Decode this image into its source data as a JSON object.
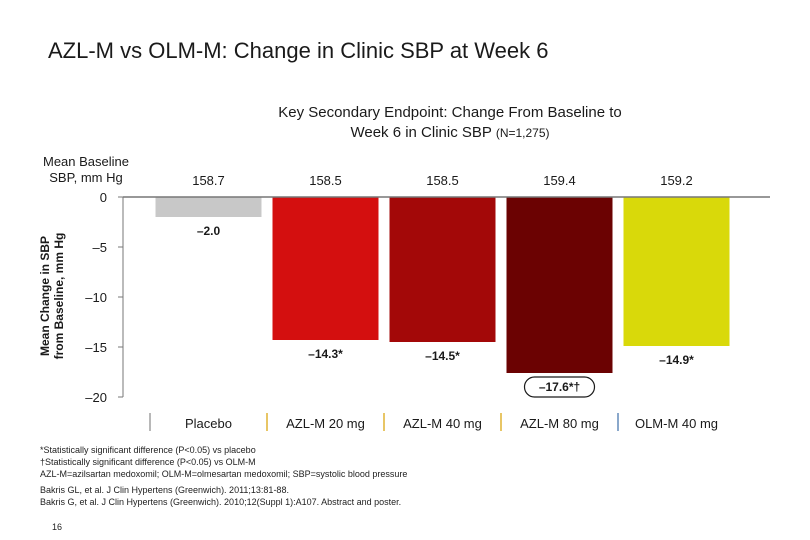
{
  "slide": {
    "title": "AZL-M vs OLM-M: Change in Clinic SBP at Week 6",
    "page_number": "16"
  },
  "chart_data": {
    "type": "bar",
    "title_line1": "Key Secondary Endpoint: Change From Baseline to",
    "title_line2": "Week 6 in Clinic SBP",
    "title_n": "(N=1,275)",
    "baseline_label_line1": "Mean Baseline",
    "baseline_label_line2": "SBP, mm Hg",
    "ylabel_line1": "Mean Change in SBP",
    "ylabel_line2": "from Baseline, mm Hg",
    "ylim": [
      -20,
      0
    ],
    "yticks": [
      0,
      -5,
      -10,
      -15,
      -20
    ],
    "ytick_labels": [
      "0",
      "–5",
      "–10",
      "–15",
      "–20"
    ],
    "categories": [
      "Placebo",
      "AZL-M 20 mg",
      "AZL-M 40 mg",
      "AZL-M 80 mg",
      "OLM-M 40 mg"
    ],
    "values": [
      -2.0,
      -14.3,
      -14.5,
      -17.6,
      -14.9
    ],
    "value_labels": [
      "–2.0",
      "–14.3*",
      "–14.5*",
      "–17.6*†",
      "–14.9*"
    ],
    "highlighted_index": 3,
    "baselines": [
      "158.7",
      "158.5",
      "158.5",
      "159.4",
      "159.2"
    ],
    "colors": [
      "#c8c8c8",
      "#d40f0f",
      "#a30808",
      "#6b0202",
      "#d9d90a"
    ],
    "legend_marker_colors": [
      "#888888",
      "#d9a000",
      "#d9a000",
      "#d9a000",
      "#3b6ea8"
    ]
  },
  "footnotes": [
    "*Statistically significant difference (P<0.05) vs placebo",
    "†Statistically significant difference (P<0.05) vs OLM-M",
    "AZL-M=azilsartan medoxomil; OLM-M=olmesartan medoxomil; SBP=systolic blood pressure"
  ],
  "references": [
    "Bakris GL, et al. J Clin Hypertens (Greenwich). 2011;13:81-88.",
    "Bakris G, et al. J Clin Hypertens (Greenwich). 2010;12(Suppl 1):A107. Abstract and poster."
  ]
}
